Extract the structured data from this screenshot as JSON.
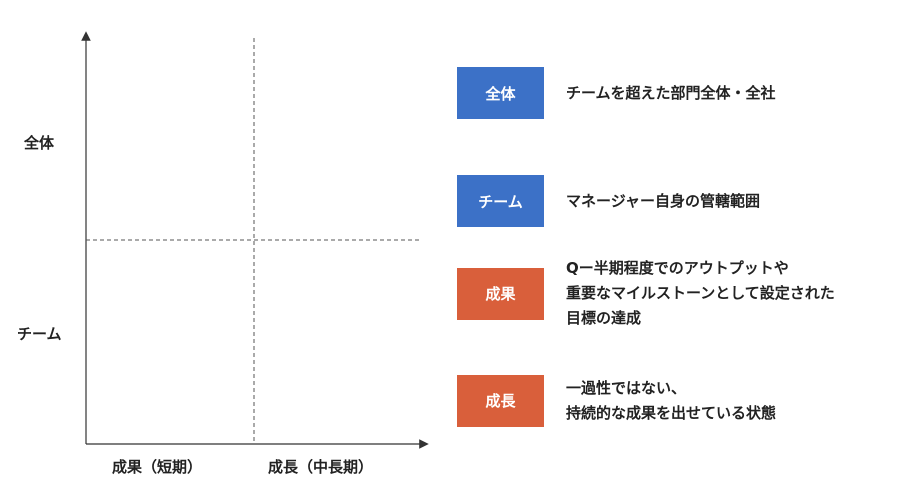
{
  "axes": {
    "y_top_label": "全体",
    "y_bottom_label": "チーム",
    "x_left_label": "成果（短期）",
    "x_right_label": "成長（中長期）"
  },
  "legend": [
    {
      "badge": "全体",
      "color": "#3c71c7",
      "description": "チームを超えた部門全体・全社"
    },
    {
      "badge": "チーム",
      "color": "#3c71c7",
      "description": "マネージャー自身の管轄範囲"
    },
    {
      "badge": "成果",
      "color": "#d95f3b",
      "description": "Qー半期程度でのアウトプットや\n重要なマイルストーンとして設定された\n目標の達成"
    },
    {
      "badge": "成長",
      "color": "#d95f3b",
      "description": "一過性ではない、\n持続的な成果を出せている状態"
    }
  ]
}
